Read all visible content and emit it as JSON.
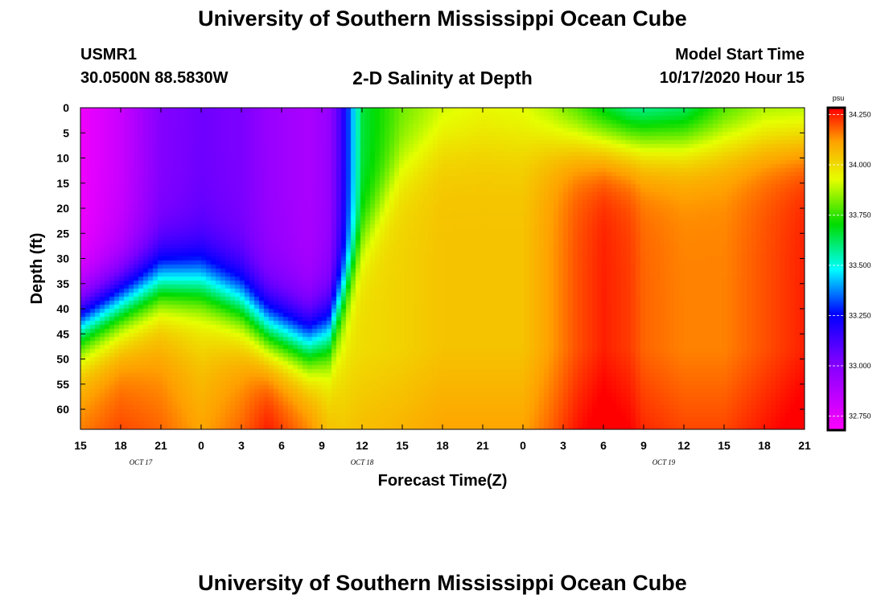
{
  "header": {
    "title": "University of Southern Mississippi Ocean Cube",
    "station": "USMR1",
    "coords": "30.0500N 88.5830W",
    "subtitle": "2-D Salinity at Depth",
    "model_label": "Model Start Time",
    "model_time": "10/17/2020 Hour 15"
  },
  "footer": {
    "title": "University of Southern Mississippi Ocean Cube"
  },
  "chart_data": {
    "type": "heatmap",
    "title": "2-D Salinity at Depth",
    "xlabel": "Forecast Time(Z)",
    "ylabel": "Depth (ft)",
    "x_ticks": [
      "15",
      "18",
      "21",
      "0",
      "3",
      "6",
      "9",
      "12",
      "15",
      "18",
      "21",
      "0",
      "3",
      "6",
      "9",
      "12",
      "15",
      "18",
      "21"
    ],
    "x_range_hours": [
      0,
      54
    ],
    "day_labels": [
      {
        "label": "OCT 17",
        "hour": 4.5
      },
      {
        "label": "OCT 18",
        "hour": 21
      },
      {
        "label": "OCT 19",
        "hour": 43.5
      }
    ],
    "y_ticks": [
      0,
      5,
      10,
      15,
      20,
      25,
      30,
      35,
      40,
      45,
      50,
      55,
      60
    ],
    "ylim_ft": [
      0,
      64
    ],
    "colorbar": {
      "unit": "psu",
      "min": 32.68,
      "max": 34.28,
      "ticks": [
        34.25,
        34.0,
        33.75,
        33.5,
        33.25,
        33.0,
        32.75
      ],
      "tick_labels": [
        "34.250",
        "34.000",
        "33.750",
        "33.500",
        "33.250",
        "33.000",
        "32.750"
      ]
    },
    "description_points": {
      "profile_hours": [
        0,
        3,
        6,
        9,
        12,
        14,
        17,
        18.5,
        19.5,
        21,
        24,
        27,
        30,
        33,
        35,
        37,
        39,
        41,
        42,
        45,
        48,
        51,
        54
      ],
      "halocline_depth_ft": [
        37,
        33,
        29,
        29,
        33,
        38,
        41,
        39,
        32,
        20,
        5,
        0,
        0,
        0,
        0,
        0,
        0,
        0,
        0,
        0,
        0,
        0,
        0
      ],
      "surface_salinity_psu": [
        32.72,
        32.82,
        33.0,
        33.05,
        33.02,
        32.95,
        32.9,
        32.95,
        33.15,
        33.65,
        33.8,
        33.88,
        33.92,
        33.9,
        33.82,
        33.7,
        33.55,
        33.45,
        33.45,
        33.5,
        33.7,
        33.8,
        33.8
      ],
      "bottom_salinity_psu": [
        34.1,
        34.15,
        34.12,
        34.05,
        34.12,
        34.2,
        34.1,
        34.0,
        33.98,
        34.0,
        34.02,
        34.05,
        34.05,
        34.05,
        34.12,
        34.2,
        34.25,
        34.22,
        34.18,
        34.15,
        34.15,
        34.2,
        34.25
      ]
    }
  }
}
